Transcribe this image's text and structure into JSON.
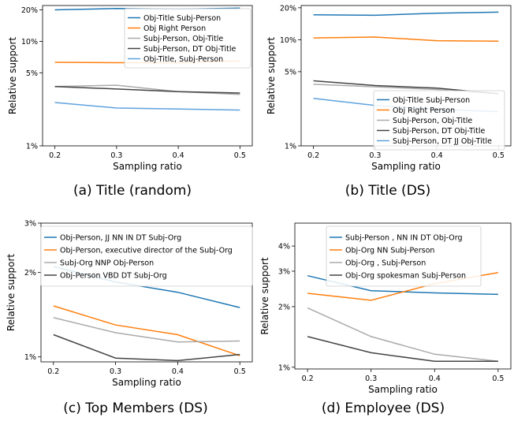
{
  "chart_data": [
    {
      "type": "line",
      "caption": "(a) Title (random)",
      "xlabel": "Sampling ratio",
      "ylabel": "Relative support",
      "yscale": "log",
      "x": [
        0.2,
        0.3,
        0.4,
        0.5
      ],
      "xticks": [
        "0.2",
        "0.3",
        "0.4",
        "0.5"
      ],
      "xlim": [
        0.18,
        0.52
      ],
      "ylim": [
        1,
        22
      ],
      "yticks": [
        {
          "value": 1,
          "label": "1%"
        },
        {
          "value": 5,
          "label": "5%"
        },
        {
          "value": 10,
          "label": "10%"
        },
        {
          "value": 20,
          "label": "20%"
        }
      ],
      "legend_position": "top-right",
      "series": [
        {
          "name": "Obj-Title Subj-Person",
          "color": "#1f77b4",
          "values": [
            20.0,
            20.6,
            20.3,
            20.8
          ]
        },
        {
          "name": "Obj Right Person",
          "color": "#ff7f0e",
          "values": [
            6.3,
            6.25,
            6.25,
            6.5
          ]
        },
        {
          "name": "Subj-Person, Obj-Title",
          "color": "#aaaaaa",
          "values": [
            3.7,
            3.8,
            3.3,
            3.1
          ]
        },
        {
          "name": "Subj-Person, DT Obj-Title",
          "color": "#444444",
          "values": [
            3.7,
            3.5,
            3.3,
            3.2
          ]
        },
        {
          "name": "Obj-Title, Subj-Person",
          "color": "#5fa2dd",
          "values": [
            2.6,
            2.3,
            2.25,
            2.2
          ]
        }
      ]
    },
    {
      "type": "line",
      "caption": "(b) Title (DS)",
      "xlabel": "Sampling ratio",
      "ylabel": "Relative support",
      "yscale": "log",
      "x": [
        0.2,
        0.3,
        0.4,
        0.5
      ],
      "xticks": [
        "0.2",
        "0.3",
        "0.4",
        "0.5"
      ],
      "xlim": [
        0.18,
        0.52
      ],
      "ylim": [
        1,
        21
      ],
      "yticks": [
        {
          "value": 1,
          "label": "1%"
        },
        {
          "value": 5,
          "label": "5%"
        },
        {
          "value": 10,
          "label": "10%"
        },
        {
          "value": 20,
          "label": "20%"
        }
      ],
      "legend_position": "bottom-right",
      "series": [
        {
          "name": "Obj-Title Subj-Person",
          "color": "#1f77b4",
          "values": [
            17.2,
            17.0,
            17.8,
            18.2
          ]
        },
        {
          "name": "Obj Right Person",
          "color": "#ff7f0e",
          "values": [
            10.4,
            10.6,
            9.8,
            9.7
          ]
        },
        {
          "name": "Subj-Person, Obj-Title",
          "color": "#aaaaaa",
          "values": [
            3.8,
            3.6,
            3.4,
            3.1
          ]
        },
        {
          "name": "Subj-Person, DT Obj-Title",
          "color": "#444444",
          "values": [
            4.1,
            3.7,
            3.5,
            3.1
          ]
        },
        {
          "name": "Subj-Person, DT JJ Obj-Title",
          "color": "#5fa2dd",
          "values": [
            2.8,
            2.4,
            2.2,
            2.1
          ]
        }
      ]
    },
    {
      "type": "line",
      "caption": "(c) Top Members (DS)",
      "xlabel": "Sampling ratio",
      "ylabel": "Relative support",
      "yscale": "log",
      "x": [
        0.2,
        0.3,
        0.4,
        0.5
      ],
      "xticks": [
        "0.2",
        "0.3",
        "0.4",
        "0.5"
      ],
      "xlim": [
        0.18,
        0.52
      ],
      "ylim": [
        0.96,
        3.0
      ],
      "yticks": [
        {
          "value": 1,
          "label": "1%"
        },
        {
          "value": 2,
          "label": "2%"
        },
        {
          "value": 3,
          "label": "3%"
        }
      ],
      "legend_position": "top",
      "series": [
        {
          "name": "Obj-Person, JJ NN IN DT Subj-Org",
          "color": "#1f77b4",
          "values": [
            2.1,
            1.85,
            1.7,
            1.5
          ]
        },
        {
          "name": "Obj-Person, executive director of the Subj-Org",
          "color": "#ff7f0e",
          "values": [
            1.52,
            1.3,
            1.2,
            1.01
          ]
        },
        {
          "name": "Subj-Org NNP Obj-Person",
          "color": "#aaaaaa",
          "values": [
            1.38,
            1.22,
            1.13,
            1.14
          ]
        },
        {
          "name": "Obj-Person VBD DT Subj-Org",
          "color": "#444444",
          "values": [
            1.2,
            0.99,
            0.97,
            1.02
          ]
        }
      ]
    },
    {
      "type": "line",
      "caption": "(d) Employee (DS)",
      "xlabel": "Sampling ratio",
      "ylabel": "Relative support",
      "yscale": "log",
      "x": [
        0.2,
        0.3,
        0.4,
        0.5
      ],
      "xticks": [
        "0.2",
        "0.3",
        "0.4",
        "0.5"
      ],
      "xlim": [
        0.18,
        0.52
      ],
      "ylim": [
        0.98,
        5.2
      ],
      "yticks": [
        {
          "value": 1,
          "label": "1%"
        },
        {
          "value": 2,
          "label": "2%"
        },
        {
          "value": 3,
          "label": "3%"
        },
        {
          "value": 4,
          "label": "4%"
        }
      ],
      "legend_position": "top",
      "series": [
        {
          "name": "Subj-Person , NN IN DT Obj-Org",
          "color": "#1f77b4",
          "values": [
            2.85,
            2.4,
            2.34,
            2.3
          ]
        },
        {
          "name": "Obj-Org NN Subj-Person",
          "color": "#ff7f0e",
          "values": [
            2.33,
            2.15,
            2.6,
            2.95
          ]
        },
        {
          "name": "Obj-Org , Subj-Person",
          "color": "#aaaaaa",
          "values": [
            1.97,
            1.42,
            1.16,
            1.07
          ]
        },
        {
          "name": "Obj-Org spokesman Subj-Person",
          "color": "#444444",
          "values": [
            1.42,
            1.18,
            1.07,
            1.07
          ]
        }
      ]
    }
  ]
}
